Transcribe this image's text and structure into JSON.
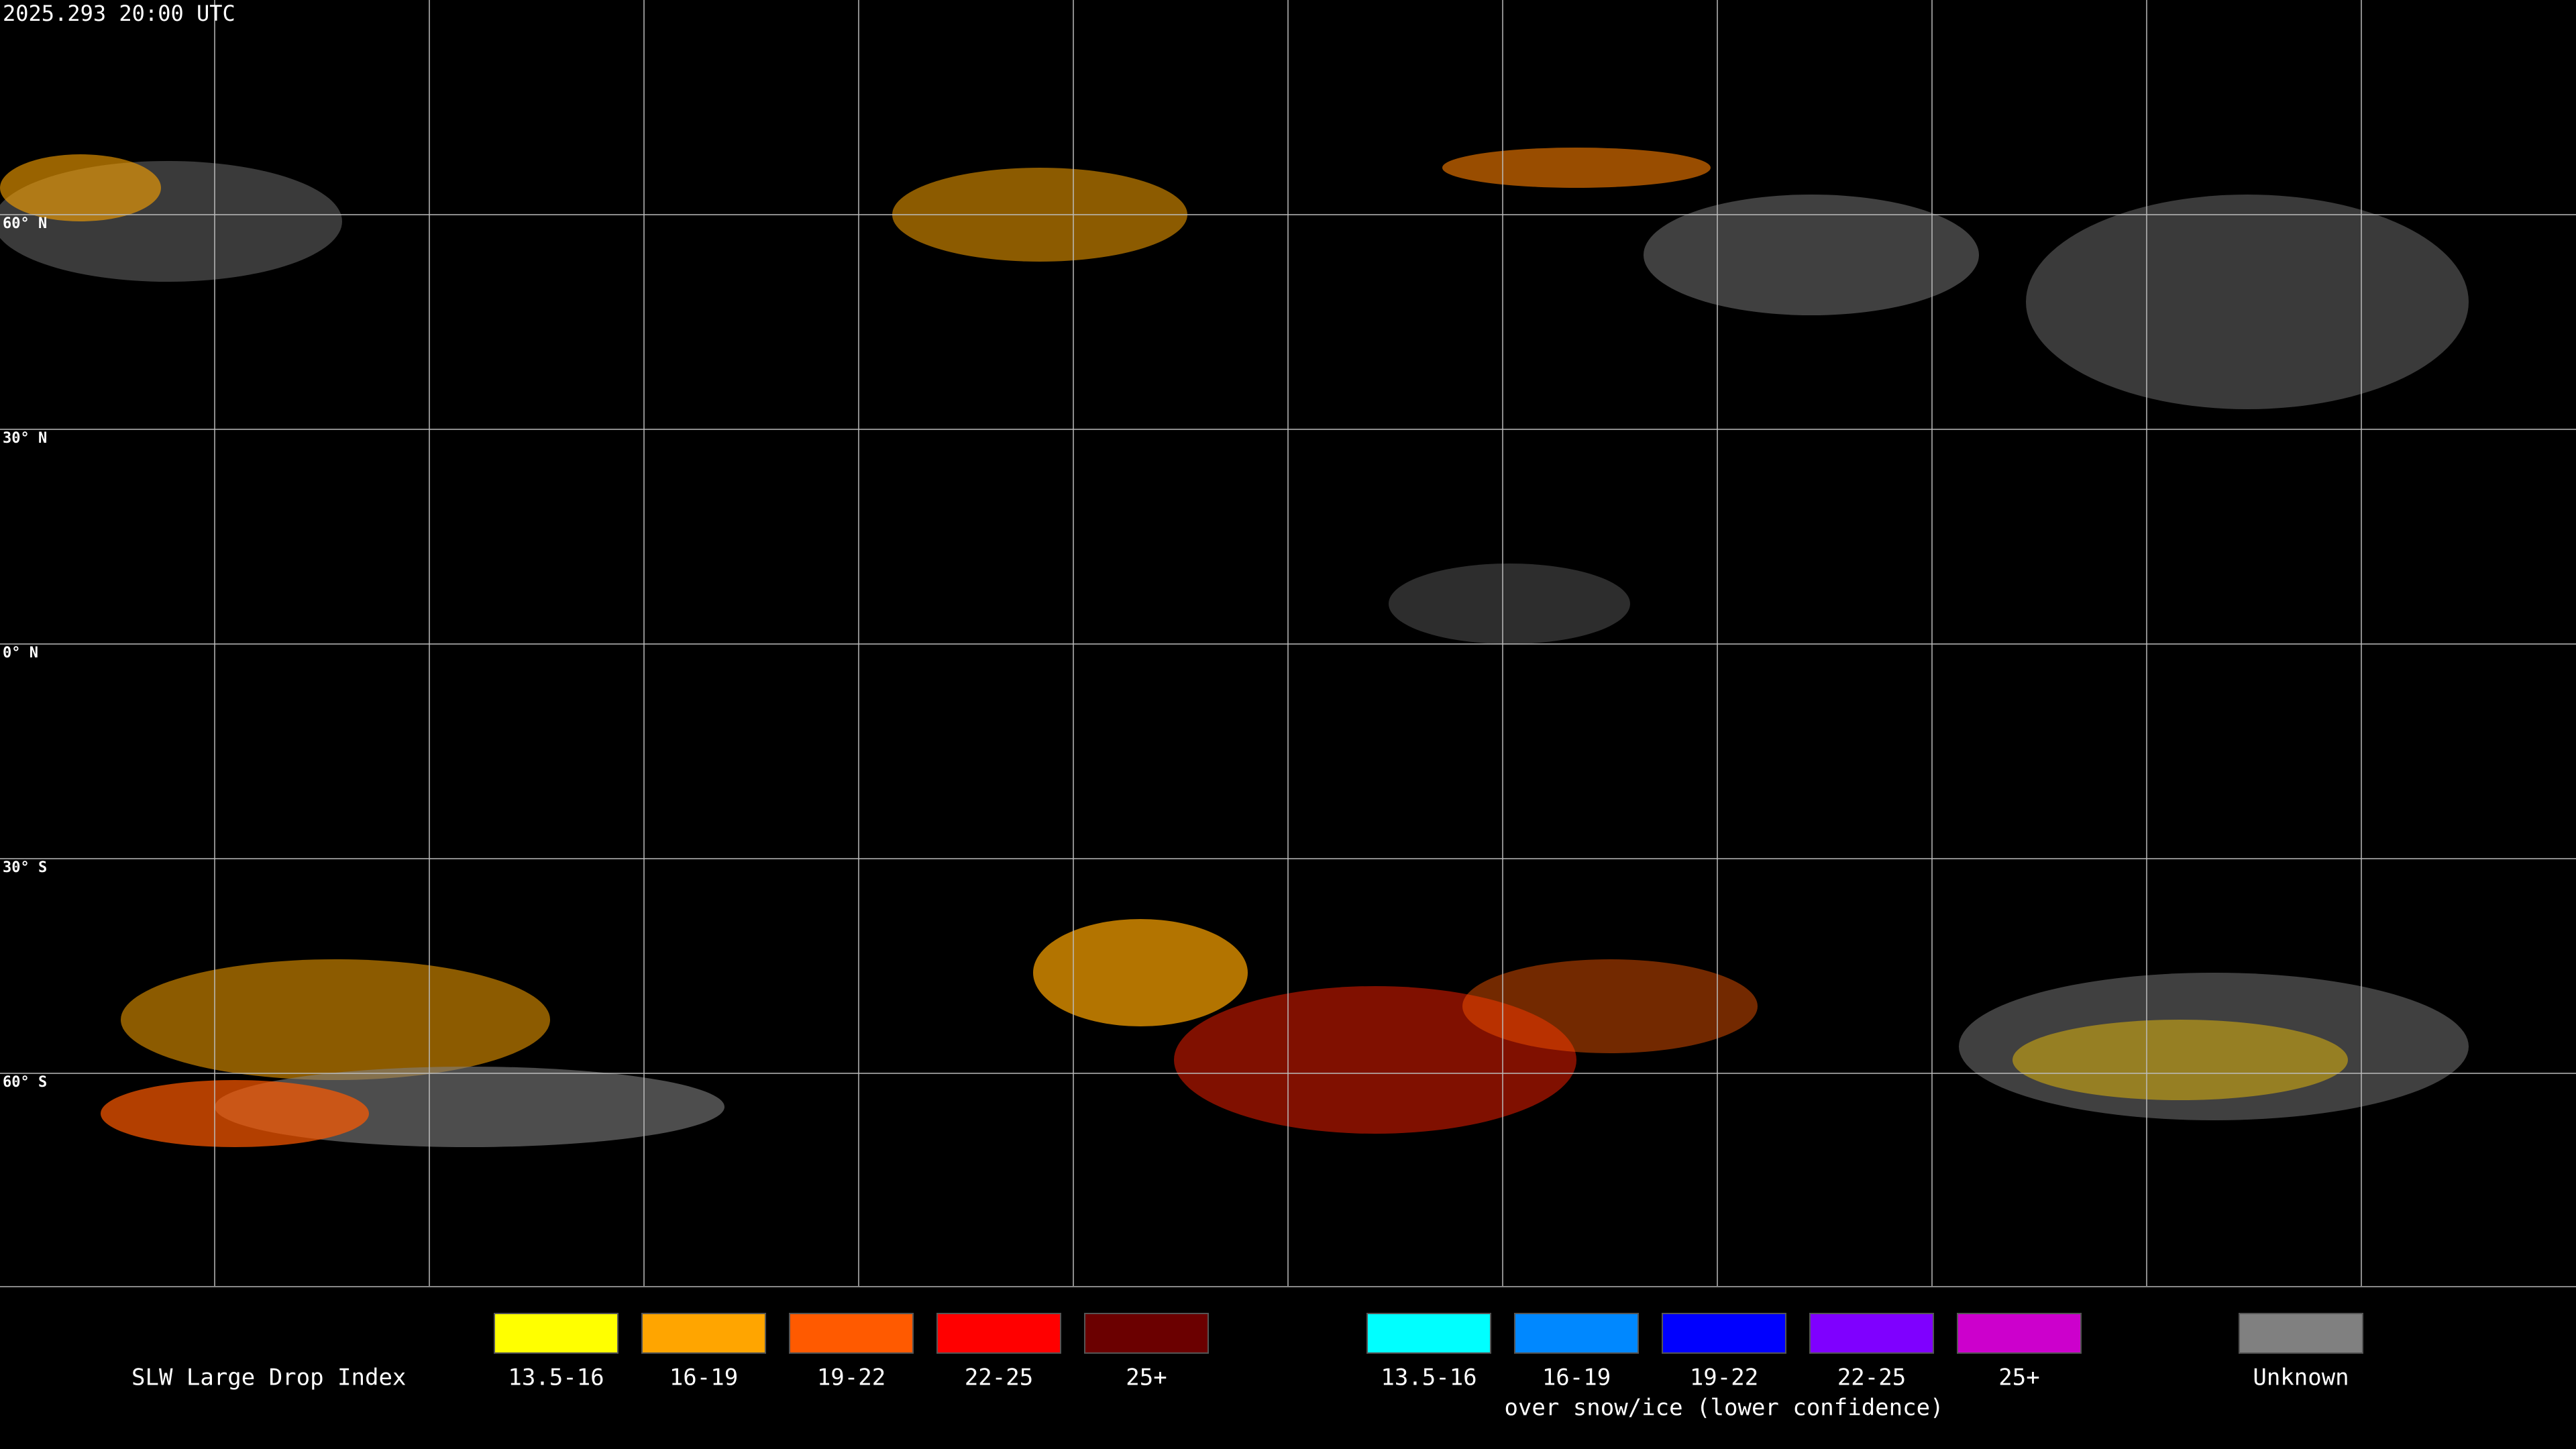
{
  "header": {
    "timestamp": "2025.293 20:00 UTC"
  },
  "map": {
    "lat_labels": [
      "60° N",
      "30° N",
      "0° N",
      "30° S",
      "60° S"
    ]
  },
  "legend": {
    "title": "SLW Large Drop Index",
    "groups": [
      {
        "items": [
          {
            "label": "13.5-16",
            "color": "#ffff00"
          },
          {
            "label": "16-19",
            "color": "#ffa500"
          },
          {
            "label": "19-22",
            "color": "#ff5a00"
          },
          {
            "label": "22-25",
            "color": "#ff0000"
          },
          {
            "label": "25+",
            "color": "#6b0000"
          }
        ]
      },
      {
        "items": [
          {
            "label": "13.5-16",
            "color": "#00ffff"
          },
          {
            "label": "16-19",
            "color": "#0088ff"
          },
          {
            "label": "19-22",
            "color": "#0000ff"
          },
          {
            "label": "22-25",
            "color": "#7f00ff"
          },
          {
            "label": "25+",
            "color": "#cc00cc"
          }
        ],
        "caption": "over snow/ice (lower confidence)"
      },
      {
        "items": [
          {
            "label": "Unknown",
            "color": "#808080"
          }
        ]
      }
    ]
  }
}
